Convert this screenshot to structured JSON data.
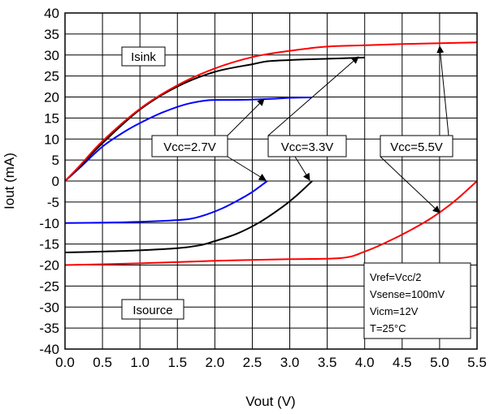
{
  "chart_data": {
    "type": "line",
    "xlabel": "Vout (V)",
    "ylabel": "Iout (mA)",
    "xlim": [
      0,
      5.5
    ],
    "ylim": [
      -40,
      40
    ],
    "xticks": [
      "0.0",
      "0.5",
      "1.0",
      "1.5",
      "2.0",
      "2.5",
      "3.0",
      "3.5",
      "4.0",
      "4.5",
      "5.0",
      "5.5"
    ],
    "yticks": [
      "40",
      "35",
      "30",
      "25",
      "20",
      "15",
      "10",
      "5",
      "0",
      "-5",
      "-10",
      "-15",
      "-20",
      "-25",
      "-30",
      "-35",
      "-40"
    ],
    "grid": true,
    "series": [
      {
        "name": "Vcc=2.7V",
        "color": "#0000ff",
        "sink": [
          [
            0,
            0
          ],
          [
            0.2,
            3.2
          ],
          [
            0.5,
            8.2
          ],
          [
            0.8,
            11.8
          ],
          [
            1.0,
            13.8
          ],
          [
            1.3,
            16.3
          ],
          [
            1.6,
            18.2
          ],
          [
            1.9,
            19.2
          ],
          [
            2.2,
            19.3
          ],
          [
            2.5,
            19.4
          ],
          [
            2.8,
            19.6
          ],
          [
            3.0,
            19.8
          ],
          [
            3.3,
            19.9
          ]
        ],
        "source": [
          [
            0,
            -10
          ],
          [
            0.5,
            -9.9
          ],
          [
            1.0,
            -9.7
          ],
          [
            1.5,
            -9.3
          ],
          [
            1.7,
            -8.9
          ],
          [
            1.9,
            -7.9
          ],
          [
            2.1,
            -6.5
          ],
          [
            2.3,
            -4.7
          ],
          [
            2.5,
            -2.6
          ],
          [
            2.7,
            0
          ]
        ]
      },
      {
        "name": "Vcc=3.3V",
        "color": "#000000",
        "sink": [
          [
            0,
            0
          ],
          [
            0.2,
            3.5
          ],
          [
            0.5,
            9.0
          ],
          [
            1.0,
            17.0
          ],
          [
            1.5,
            22.5
          ],
          [
            2.0,
            26.0
          ],
          [
            2.5,
            27.8
          ],
          [
            2.7,
            28.5
          ],
          [
            3.0,
            28.8
          ],
          [
            3.5,
            29.1
          ],
          [
            4.0,
            29.4
          ]
        ],
        "source": [
          [
            0,
            -17
          ],
          [
            0.5,
            -16.8
          ],
          [
            1.0,
            -16.5
          ],
          [
            1.5,
            -16.0
          ],
          [
            1.8,
            -15.3
          ],
          [
            2.0,
            -14.3
          ],
          [
            2.3,
            -12.5
          ],
          [
            2.6,
            -9.8
          ],
          [
            2.9,
            -6.2
          ],
          [
            3.1,
            -3.3
          ],
          [
            3.3,
            0
          ]
        ]
      },
      {
        "name": "Vcc=5.5V",
        "color": "#ff0000",
        "sink": [
          [
            0,
            0
          ],
          [
            0.2,
            3.7
          ],
          [
            0.5,
            9.5
          ],
          [
            1.0,
            17.2
          ],
          [
            1.5,
            22.8
          ],
          [
            2.0,
            26.8
          ],
          [
            2.5,
            29.5
          ],
          [
            3.0,
            31.0
          ],
          [
            3.5,
            32.0
          ],
          [
            4.0,
            32.3
          ],
          [
            4.5,
            32.6
          ],
          [
            5.0,
            32.8
          ],
          [
            5.5,
            33.0
          ]
        ],
        "source": [
          [
            0,
            -20
          ],
          [
            1.0,
            -19.6
          ],
          [
            2.0,
            -19.0
          ],
          [
            3.0,
            -18.6
          ],
          [
            3.7,
            -18.3
          ],
          [
            4.0,
            -16.8
          ],
          [
            4.3,
            -14.5
          ],
          [
            4.6,
            -11.8
          ],
          [
            4.9,
            -8.7
          ],
          [
            5.2,
            -4.8
          ],
          [
            5.5,
            0
          ]
        ]
      }
    ],
    "annotations": {
      "isink": "Isink",
      "isource": "Isource",
      "conditions": [
        "Vref=Vcc/2",
        "Vsense=100mV",
        "Vicm=12V",
        "T=25°C"
      ]
    }
  }
}
